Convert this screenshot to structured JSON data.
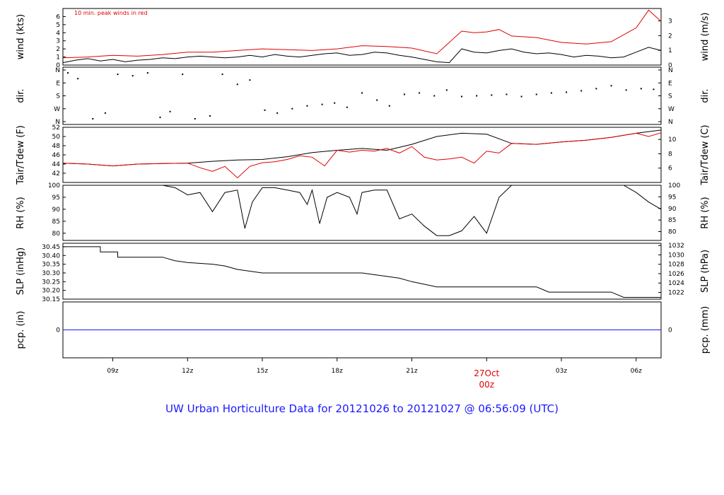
{
  "title": "UW Urban Horticulture Data for 20121026  to  20121027 @ 06:56:09  (UTC)",
  "colors": {
    "black": "#000000",
    "red": "#e00000",
    "blue": "#1a1aff"
  },
  "chart_data": [
    {
      "id": "wind",
      "type": "line",
      "ylabel_left": "wind (kts)",
      "ylabel_right": "wind (m/s)",
      "ylim": [
        0,
        7
      ],
      "yticks_left": [
        "0",
        "1",
        "2",
        "3",
        "4",
        "5",
        "6"
      ],
      "yticks_right": [
        "0",
        "1",
        "2",
        "3"
      ],
      "annotation": "10 min. peak winds in red",
      "series": [
        {
          "color": "black",
          "x": [
            7.0,
            7.5,
            8.0,
            8.5,
            9.0,
            9.5,
            10.0,
            10.5,
            11.0,
            11.5,
            12.0,
            12.5,
            13.0,
            13.5,
            14.0,
            14.5,
            15.0,
            15.5,
            16.0,
            16.5,
            17.0,
            17.5,
            18.0,
            18.5,
            19.0,
            19.5,
            20.0,
            20.5,
            21.0,
            21.5,
            22.0,
            22.5,
            23.0,
            23.5,
            24.0,
            24.5,
            25.0,
            25.5,
            26.0,
            26.5,
            27.0,
            27.5,
            28.0,
            28.5,
            29.0,
            29.5,
            30.0,
            30.5,
            31.0
          ],
          "y": [
            0.3,
            0.6,
            0.8,
            0.5,
            0.7,
            0.4,
            0.6,
            0.7,
            0.9,
            0.8,
            1.0,
            1.1,
            1.0,
            0.9,
            1.0,
            1.2,
            1.0,
            1.3,
            1.1,
            1.0,
            1.2,
            1.4,
            1.5,
            1.2,
            1.3,
            1.6,
            1.5,
            1.2,
            1.0,
            0.7,
            0.4,
            0.3,
            2.0,
            1.6,
            1.5,
            1.8,
            2.0,
            1.6,
            1.4,
            1.5,
            1.3,
            1.0,
            1.2,
            1.1,
            0.9,
            1.0,
            1.6,
            2.2,
            1.8
          ]
        },
        {
          "color": "red",
          "x": [
            7.0,
            8.0,
            9.0,
            10.0,
            11.0,
            12.0,
            13.0,
            14.0,
            15.0,
            16.0,
            17.0,
            18.0,
            19.0,
            20.0,
            21.0,
            22.0,
            23.0,
            23.5,
            24.0,
            24.5,
            25.0,
            26.0,
            27.0,
            28.0,
            29.0,
            30.0,
            30.5,
            31.0
          ],
          "y": [
            0.9,
            1.0,
            1.2,
            1.1,
            1.3,
            1.6,
            1.6,
            1.8,
            2.0,
            1.9,
            1.8,
            2.0,
            2.4,
            2.3,
            2.1,
            1.4,
            4.2,
            4.0,
            4.1,
            4.4,
            3.6,
            3.4,
            2.8,
            2.6,
            2.9,
            4.6,
            6.8,
            5.4
          ]
        }
      ]
    },
    {
      "id": "dir",
      "type": "scatter",
      "ylabel_left": "dir.",
      "ylabel_right": "dir.",
      "yticks": [
        "N",
        "W",
        "S",
        "E",
        "N"
      ],
      "series": [
        {
          "color": "black",
          "x": [
            7.2,
            7.6,
            8.2,
            8.7,
            9.2,
            9.8,
            10.4,
            10.9,
            11.3,
            11.8,
            12.3,
            12.9,
            13.4,
            14.0,
            14.5,
            15.1,
            15.6,
            16.2,
            16.8,
            17.4,
            17.9,
            18.4,
            19.0,
            19.6,
            20.1,
            20.7,
            21.3,
            21.9,
            22.4,
            23.0,
            23.6,
            24.2,
            24.8,
            25.4,
            26.0,
            26.6,
            27.2,
            27.8,
            28.4,
            29.0,
            29.6,
            30.2,
            30.7
          ],
          "y": [
            340,
            300,
            20,
            60,
            330,
            320,
            340,
            30,
            70,
            330,
            20,
            40,
            330,
            260,
            290,
            80,
            60,
            90,
            110,
            120,
            130,
            100,
            200,
            150,
            110,
            190,
            200,
            180,
            220,
            175,
            180,
            185,
            190,
            175,
            190,
            200,
            205,
            215,
            230,
            250,
            220,
            230,
            225
          ]
        }
      ]
    },
    {
      "id": "temp",
      "type": "line",
      "ylabel_left": "Tair/Tdew (F)",
      "ylabel_right": "Tair/Tdew (C)",
      "ylim": [
        40,
        52
      ],
      "yticks_left": [
        "42",
        "44",
        "46",
        "48",
        "50",
        "52"
      ],
      "yticks_right": [
        "6",
        "8",
        "10"
      ],
      "series": [
        {
          "color": "black",
          "x": [
            7.0,
            8.0,
            9.0,
            10.0,
            11.0,
            12.0,
            13.0,
            14.0,
            15.0,
            16.0,
            17.0,
            18.0,
            19.0,
            20.0,
            21.0,
            22.0,
            23.0,
            24.0,
            25.0,
            26.0,
            27.0,
            28.0,
            29.0,
            30.0,
            31.0
          ],
          "y": [
            44.2,
            44.0,
            43.6,
            44.0,
            44.1,
            44.2,
            44.6,
            44.9,
            45.0,
            45.6,
            46.5,
            47.0,
            47.4,
            47.0,
            48.3,
            50.0,
            50.7,
            50.5,
            48.5,
            48.3,
            48.8,
            49.2,
            49.8,
            50.7,
            51.4
          ]
        },
        {
          "color": "red",
          "x": [
            7.0,
            8.0,
            9.0,
            10.0,
            11.0,
            12.0,
            12.5,
            13.0,
            13.5,
            14.0,
            14.5,
            15.0,
            15.5,
            16.0,
            16.5,
            17.0,
            17.5,
            18.0,
            18.5,
            19.0,
            19.5,
            20.0,
            20.5,
            21.0,
            21.5,
            22.0,
            22.5,
            23.0,
            23.5,
            24.0,
            24.5,
            25.0,
            26.0,
            27.0,
            28.0,
            29.0,
            30.0,
            30.5,
            31.0
          ],
          "y": [
            44.2,
            44.0,
            43.6,
            44.0,
            44.1,
            44.2,
            43.2,
            42.4,
            43.5,
            41.0,
            43.5,
            44.3,
            44.5,
            45.0,
            45.8,
            45.5,
            43.6,
            47.0,
            46.6,
            47.0,
            46.8,
            47.4,
            46.4,
            47.8,
            45.5,
            44.9,
            45.1,
            45.5,
            44.2,
            46.8,
            46.4,
            48.5,
            48.3,
            48.8,
            49.2,
            49.8,
            50.7,
            50.0,
            50.8
          ]
        }
      ]
    },
    {
      "id": "rh",
      "type": "line",
      "ylabel_left": "RH (%)",
      "ylabel_right": "RH (%)",
      "ylim": [
        77,
        100
      ],
      "yticks_left": [
        "80",
        "85",
        "90",
        "95",
        "100"
      ],
      "yticks_right": [
        "80",
        "85",
        "90",
        "95",
        "100"
      ],
      "series": [
        {
          "color": "black",
          "x": [
            7.0,
            8.0,
            9.0,
            10.0,
            11.0,
            11.5,
            12.0,
            12.5,
            13.0,
            13.5,
            14.0,
            14.3,
            14.6,
            15.0,
            15.5,
            16.0,
            16.5,
            16.8,
            17.0,
            17.3,
            17.6,
            18.0,
            18.5,
            18.8,
            19.0,
            19.5,
            20.0,
            20.5,
            21.0,
            21.5,
            22.0,
            22.5,
            23.0,
            23.5,
            24.0,
            24.5,
            25.0,
            26.0,
            27.0,
            28.0,
            29.0,
            29.5,
            30.0,
            30.5,
            31.0
          ],
          "y": [
            100,
            100,
            100,
            100,
            100,
            99,
            96,
            97,
            89,
            97,
            98,
            82,
            93,
            99,
            99,
            98,
            97,
            92,
            98,
            84,
            95,
            97,
            95,
            88,
            97,
            98,
            98,
            86,
            88,
            83,
            79,
            79,
            81,
            87,
            80,
            95,
            100,
            100,
            100,
            100,
            100,
            100,
            97,
            93,
            90
          ]
        }
      ]
    },
    {
      "id": "slp",
      "type": "line",
      "ylabel_left": "SLP (inHg)",
      "ylabel_right": "SLP (hPa)",
      "ylim": [
        30.15,
        30.47
      ],
      "yticks_left": [
        "30.15",
        "30.20",
        "30.25",
        "30.30",
        "30.35",
        "30.40",
        "30.45"
      ],
      "yticks_right": [
        "1022",
        "1024",
        "1026",
        "1028",
        "1030",
        "1032"
      ],
      "series": [
        {
          "color": "black",
          "x": [
            7.0,
            8.5,
            8.5,
            9.2,
            9.2,
            9.5,
            9.5,
            10.0,
            11.0,
            11.5,
            12.0,
            13.0,
            13.5,
            14.0,
            15.0,
            16.0,
            17.0,
            18.0,
            19.0,
            20.0,
            20.5,
            21.0,
            22.0,
            23.0,
            24.0,
            25.0,
            26.0,
            26.5,
            27.0,
            28.0,
            29.0,
            29.5,
            30.0,
            31.0
          ],
          "y": [
            30.45,
            30.45,
            30.42,
            30.42,
            30.39,
            30.39,
            30.39,
            30.39,
            30.39,
            30.37,
            30.36,
            30.35,
            30.34,
            30.32,
            30.3,
            30.3,
            30.3,
            30.3,
            30.3,
            30.28,
            30.27,
            30.25,
            30.22,
            30.22,
            30.22,
            30.22,
            30.22,
            30.19,
            30.19,
            30.19,
            30.19,
            30.16,
            30.16,
            30.16
          ]
        }
      ]
    },
    {
      "id": "pcp",
      "type": "line",
      "ylabel_left": "pcp. (in)",
      "ylabel_right": "pcp. (mm)",
      "yticks_left": [
        "0"
      ],
      "yticks_right": [
        "0"
      ],
      "series": [
        {
          "color": "blue",
          "x": [
            7.0,
            31.0
          ],
          "y": [
            0,
            0
          ]
        }
      ]
    }
  ],
  "xaxis": {
    "range": [
      7.0,
      31.0
    ],
    "ticks": [
      {
        "x": 9,
        "label": "09z"
      },
      {
        "x": 12,
        "label": "12z"
      },
      {
        "x": 15,
        "label": "15z"
      },
      {
        "x": 18,
        "label": "18z"
      },
      {
        "x": 21,
        "label": "21z"
      },
      {
        "x": 27,
        "label": "03z"
      },
      {
        "x": 30,
        "label": "06z"
      }
    ],
    "day_mark": {
      "x": 24,
      "label1": "27Oct",
      "label2": "00z"
    }
  }
}
